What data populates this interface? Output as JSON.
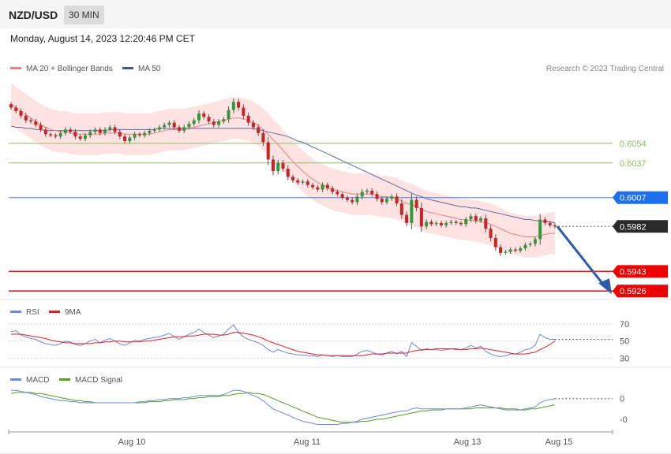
{
  "header": {
    "symbol": "NZD/USD",
    "timeframe": "30 MIN",
    "datetime": "Monday, August 14, 2023 12:20:46 PM CET"
  },
  "colors": {
    "up_candle": "#2e9a3a",
    "down_candle": "#cc2222",
    "ma20": "#f08080",
    "bollinger_fill": "#ffdede",
    "ma50": "#5a6aa6",
    "resistance": "#8cc060",
    "pivot": "#4a7fd6",
    "support": "#e02020",
    "rsi": "#6a8ade",
    "rsi_ma": "#dd2222",
    "macd": "#6a8ade",
    "macd_signal": "#55a020",
    "arrow": "#2f5aa8"
  },
  "chart_data": [
    {
      "type": "candlestick",
      "title": "NZD/USD",
      "legend": [
        {
          "label": "MA 20 + Bollinger Bands",
          "color": "#f08080"
        },
        {
          "label": "MA 50",
          "color": "#3a5a9a"
        }
      ],
      "legend_placement": "top-left",
      "credit": "Research © 2023 Trading Central",
      "ylim": [
        0.592,
        0.611
      ],
      "x_ticks": [
        "Aug 10",
        "Aug 11",
        "Aug 13",
        "Aug 15"
      ],
      "levels": [
        {
          "label": "0.6054",
          "value": 0.6054,
          "kind": "resistance"
        },
        {
          "label": "0.6037",
          "value": 0.6037,
          "kind": "resistance"
        },
        {
          "label": "0.6007",
          "value": 0.6007,
          "kind": "pivot"
        },
        {
          "label": "0.5982",
          "value": 0.5982,
          "kind": "last"
        },
        {
          "label": "0.5943",
          "value": 0.5943,
          "kind": "support"
        },
        {
          "label": "0.5926",
          "value": 0.5926,
          "kind": "support"
        }
      ],
      "close": [
        0.6085,
        0.6082,
        0.6078,
        0.6074,
        0.6073,
        0.607,
        0.6066,
        0.6062,
        0.6061,
        0.606,
        0.6063,
        0.6066,
        0.6064,
        0.606,
        0.6058,
        0.6061,
        0.6064,
        0.6066,
        0.6063,
        0.6066,
        0.6068,
        0.6064,
        0.606,
        0.6056,
        0.6059,
        0.6062,
        0.6061,
        0.6063,
        0.6065,
        0.6066,
        0.6068,
        0.607,
        0.6072,
        0.6068,
        0.6065,
        0.6068,
        0.6071,
        0.6074,
        0.608,
        0.6077,
        0.6073,
        0.607,
        0.6073,
        0.6075,
        0.6083,
        0.609,
        0.6085,
        0.6078,
        0.6072,
        0.6068,
        0.6063,
        0.6055,
        0.604,
        0.603,
        0.6037,
        0.6032,
        0.6025,
        0.6022,
        0.602,
        0.6021,
        0.6018,
        0.6016,
        0.6014,
        0.6018,
        0.6015,
        0.6012,
        0.601,
        0.6007,
        0.6005,
        0.6003,
        0.6008,
        0.6012,
        0.6013,
        0.601,
        0.6006,
        0.6003,
        0.6006,
        0.6008,
        0.6002,
        0.5992,
        0.5985,
        0.6005,
        0.5998,
        0.5982,
        0.5986,
        0.5984,
        0.5985,
        0.5983,
        0.5985,
        0.5986,
        0.5985,
        0.5984,
        0.5988,
        0.5991,
        0.5987,
        0.5989,
        0.598,
        0.5972,
        0.5964,
        0.5959,
        0.596,
        0.5962,
        0.5961,
        0.5963,
        0.5966,
        0.5967,
        0.5971,
        0.5988,
        0.5985,
        0.5983,
        0.5982
      ],
      "ma20": [
        0.6088,
        0.6085,
        0.6082,
        0.6079,
        0.6076,
        0.6073,
        0.607,
        0.6068,
        0.6066,
        0.6065,
        0.6064,
        0.6064,
        0.6063,
        0.6062,
        0.6062,
        0.6062,
        0.6062,
        0.6062,
        0.6062,
        0.6063,
        0.6063,
        0.6063,
        0.6063,
        0.6062,
        0.6062,
        0.6062,
        0.6062,
        0.6062,
        0.6062,
        0.6063,
        0.6064,
        0.6065,
        0.6066,
        0.6066,
        0.6066,
        0.6066,
        0.6067,
        0.6068,
        0.6069,
        0.607,
        0.6071,
        0.6072,
        0.6073,
        0.6074,
        0.6075,
        0.6076,
        0.6076,
        0.6075,
        0.6074,
        0.6072,
        0.607,
        0.6066,
        0.6062,
        0.6057,
        0.6053,
        0.6048,
        0.6043,
        0.6038,
        0.6034,
        0.603,
        0.6026,
        0.6023,
        0.602,
        0.6018,
        0.6016,
        0.6014,
        0.6013,
        0.6012,
        0.6011,
        0.601,
        0.601,
        0.601,
        0.601,
        0.601,
        0.6009,
        0.6008,
        0.6008,
        0.6007,
        0.6006,
        0.6004,
        0.6002,
        0.6001,
        0.5999,
        0.5997,
        0.5995,
        0.5994,
        0.5993,
        0.5992,
        0.5991,
        0.599,
        0.5989,
        0.5988,
        0.5988,
        0.5987,
        0.5987,
        0.5986,
        0.5985,
        0.5984,
        0.5982,
        0.598,
        0.5978,
        0.5976,
        0.5975,
        0.5974,
        0.5973,
        0.5973,
        0.5973,
        0.5974,
        0.5975,
        0.5976,
        0.5976
      ],
      "ma50": [
        0.6069,
        0.6068,
        0.6068,
        0.6067,
        0.6067,
        0.6066,
        0.6066,
        0.6065,
        0.6065,
        0.6065,
        0.6065,
        0.6065,
        0.6065,
        0.6065,
        0.6065,
        0.6065,
        0.6065,
        0.6065,
        0.6065,
        0.6065,
        0.6066,
        0.6066,
        0.6066,
        0.6066,
        0.6066,
        0.6066,
        0.6066,
        0.6066,
        0.6066,
        0.6066,
        0.6067,
        0.6067,
        0.6067,
        0.6067,
        0.6067,
        0.6067,
        0.6067,
        0.6067,
        0.6067,
        0.6067,
        0.6067,
        0.6067,
        0.6067,
        0.6067,
        0.6067,
        0.6067,
        0.6067,
        0.6067,
        0.6067,
        0.6067,
        0.6066,
        0.6065,
        0.6064,
        0.6063,
        0.6062,
        0.6061,
        0.606,
        0.6058,
        0.6056,
        0.6055,
        0.6053,
        0.6051,
        0.6049,
        0.6047,
        0.6045,
        0.6043,
        0.6041,
        0.6039,
        0.6037,
        0.6035,
        0.6033,
        0.6031,
        0.6029,
        0.6027,
        0.6025,
        0.6023,
        0.6021,
        0.6019,
        0.6017,
        0.6015,
        0.6013,
        0.6011,
        0.6009,
        0.6008,
        0.6006,
        0.6005,
        0.6004,
        0.6003,
        0.6002,
        0.6001,
        0.6,
        0.5999,
        0.5999,
        0.5998,
        0.5998,
        0.5997,
        0.5996,
        0.5995,
        0.5994,
        0.5993,
        0.5992,
        0.5991,
        0.599,
        0.5989,
        0.5988,
        0.5988,
        0.5987,
        0.5987,
        0.5986,
        0.5986,
        0.5985
      ],
      "bb_width": 0.0018
    },
    {
      "type": "line",
      "title": "RSI",
      "legend": [
        {
          "label": "RSI",
          "color": "#6a8ade"
        },
        {
          "label": "9MA",
          "color": "#dd2222"
        }
      ],
      "y_ticks": [
        "70",
        "50",
        "30"
      ],
      "ylim": [
        25,
        80
      ],
      "series": [
        {
          "name": "RSI",
          "values": [
            61,
            62,
            57,
            55,
            53,
            52,
            49,
            47,
            46,
            45,
            47,
            50,
            49,
            46,
            45,
            47,
            50,
            52,
            48,
            51,
            53,
            50,
            47,
            45,
            48,
            51,
            50,
            52,
            53,
            54,
            55,
            57,
            59,
            55,
            52,
            55,
            58,
            60,
            64,
            60,
            57,
            54,
            56,
            58,
            64,
            69,
            60,
            55,
            52,
            50,
            48,
            45,
            40,
            37,
            40,
            38,
            36,
            35,
            34,
            34,
            33,
            33,
            32,
            34,
            33,
            32,
            33,
            32,
            32,
            32,
            35,
            38,
            39,
            37,
            35,
            34,
            36,
            38,
            35,
            38,
            32,
            48,
            44,
            39,
            41,
            40,
            40,
            39,
            40,
            41,
            40,
            40,
            42,
            45,
            42,
            44,
            38,
            35,
            33,
            32,
            33,
            35,
            35,
            37,
            40,
            41,
            45,
            58,
            54,
            52,
            52
          ]
        },
        {
          "name": "9MA",
          "values": [
            58,
            58,
            58,
            57,
            56,
            55,
            54,
            53,
            51,
            50,
            49,
            48,
            48,
            47,
            47,
            47,
            47,
            48,
            48,
            49,
            49,
            50,
            50,
            49,
            49,
            49,
            49,
            50,
            50,
            51,
            52,
            53,
            54,
            55,
            55,
            55,
            56,
            56,
            57,
            58,
            58,
            58,
            57,
            57,
            58,
            60,
            60,
            59,
            58,
            57,
            55,
            53,
            50,
            48,
            46,
            44,
            42,
            40,
            38,
            37,
            36,
            35,
            34,
            34,
            33,
            33,
            33,
            33,
            33,
            33,
            33,
            33,
            34,
            35,
            35,
            35,
            36,
            36,
            36,
            36,
            36,
            38,
            39,
            40,
            40,
            40,
            41,
            41,
            41,
            41,
            41,
            40,
            40,
            41,
            41,
            42,
            41,
            40,
            39,
            38,
            37,
            36,
            35,
            35,
            35,
            36,
            37,
            40,
            43,
            46,
            50
          ]
        }
      ]
    },
    {
      "type": "line",
      "title": "MACD",
      "legend": [
        {
          "label": "MACD",
          "color": "#6a8ade"
        },
        {
          "label": "MACD Signal",
          "color": "#55a020"
        }
      ],
      "y_ticks": [
        "0",
        "-0"
      ],
      "ylim": [
        -0.003,
        0.0012
      ],
      "series": [
        {
          "name": "MACD",
          "values": [
            0.0008,
            0.0008,
            0.0007,
            0.0006,
            0.0005,
            0.0004,
            0.0002,
            0.0001,
            -0.0,
            -0.0001,
            -0.0002,
            -0.0002,
            -0.0003,
            -0.0003,
            -0.0004,
            -0.0004,
            -0.0004,
            -0.0004,
            -0.0004,
            -0.0004,
            -0.0004,
            -0.0004,
            -0.0004,
            -0.0004,
            -0.0004,
            -0.0004,
            -0.0003,
            -0.0003,
            -0.0002,
            -0.0002,
            -0.0001,
            -0.0001,
            -0.0,
            -0.0,
            0.0,
            0.0001,
            0.0001,
            0.0002,
            0.0003,
            0.0003,
            0.0003,
            0.0003,
            0.0003,
            0.0004,
            0.0006,
            0.0008,
            0.0008,
            0.0007,
            0.0005,
            0.0003,
            0.0001,
            -0.0002,
            -0.0006,
            -0.001,
            -0.0012,
            -0.0014,
            -0.0016,
            -0.0018,
            -0.002,
            -0.0022,
            -0.0023,
            -0.0024,
            -0.0025,
            -0.0025,
            -0.0025,
            -0.0025,
            -0.0025,
            -0.0024,
            -0.0024,
            -0.0023,
            -0.0022,
            -0.002,
            -0.0019,
            -0.0018,
            -0.0017,
            -0.0016,
            -0.0015,
            -0.0014,
            -0.0013,
            -0.0012,
            -0.0012,
            -0.001,
            -0.0009,
            -0.001,
            -0.001,
            -0.001,
            -0.001,
            -0.001,
            -0.001,
            -0.001,
            -0.001,
            -0.001,
            -0.0009,
            -0.0008,
            -0.0007,
            -0.0006,
            -0.0007,
            -0.0008,
            -0.0009,
            -0.001,
            -0.0011,
            -0.0011,
            -0.0011,
            -0.0011,
            -0.001,
            -0.0009,
            -0.0008,
            -0.0004,
            -0.0002,
            -0.0001,
            -0.0
          ]
        },
        {
          "name": "MACD Signal",
          "values": [
            0.0005,
            0.0006,
            0.0006,
            0.0006,
            0.0006,
            0.0005,
            0.0005,
            0.0004,
            0.0003,
            0.0002,
            0.0001,
            0.0,
            -0.0001,
            -0.0002,
            -0.0002,
            -0.0003,
            -0.0003,
            -0.0004,
            -0.0004,
            -0.0004,
            -0.0004,
            -0.0004,
            -0.0004,
            -0.0004,
            -0.0004,
            -0.0004,
            -0.0004,
            -0.0004,
            -0.0003,
            -0.0003,
            -0.0003,
            -0.0002,
            -0.0002,
            -0.0001,
            -0.0001,
            -0.0001,
            0.0,
            0.0,
            0.0001,
            0.0001,
            0.0002,
            0.0002,
            0.0002,
            0.0003,
            0.0003,
            0.0004,
            0.0005,
            0.0005,
            0.0006,
            0.0005,
            0.0005,
            0.0004,
            0.0002,
            0.0,
            -0.0002,
            -0.0004,
            -0.0006,
            -0.0008,
            -0.001,
            -0.0012,
            -0.0014,
            -0.0016,
            -0.0018,
            -0.0019,
            -0.002,
            -0.0021,
            -0.0022,
            -0.0023,
            -0.0023,
            -0.0023,
            -0.0023,
            -0.0022,
            -0.0022,
            -0.0021,
            -0.002,
            -0.002,
            -0.0019,
            -0.0018,
            -0.0017,
            -0.0016,
            -0.0015,
            -0.0014,
            -0.0013,
            -0.0012,
            -0.0012,
            -0.0011,
            -0.0011,
            -0.0011,
            -0.001,
            -0.001,
            -0.001,
            -0.001,
            -0.001,
            -0.001,
            -0.0009,
            -0.0009,
            -0.0009,
            -0.0009,
            -0.0009,
            -0.0009,
            -0.001,
            -0.001,
            -0.001,
            -0.0011,
            -0.0011,
            -0.001,
            -0.001,
            -0.0009,
            -0.0008,
            -0.0007,
            -0.0006
          ]
        }
      ]
    }
  ]
}
